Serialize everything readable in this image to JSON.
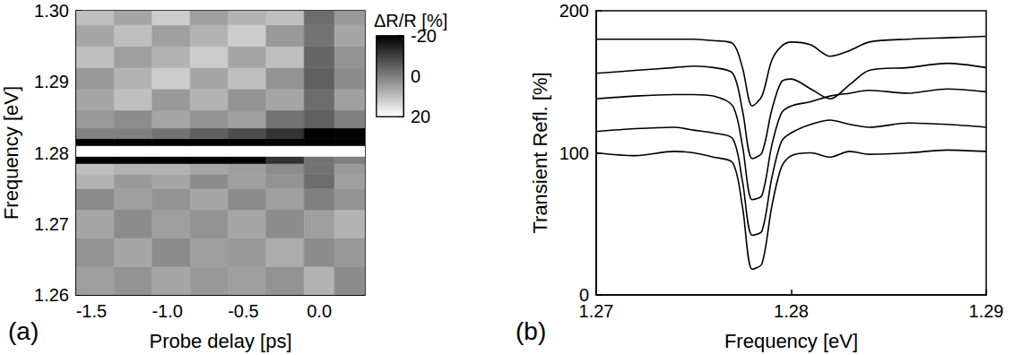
{
  "chart_data": [
    {
      "type": "heatmap",
      "panel_label": "(a)",
      "x_label": "Probe delay [ps]",
      "y_label": "Frequency [eV]",
      "xlim": [
        -1.6,
        0.3
      ],
      "xticks": [
        -1.5,
        {
          "value": -1,
          "label": "-1.0"
        },
        -0.5,
        {
          "value": 0,
          "label": "0.0"
        }
      ],
      "ylim": [
        1.26,
        1.3
      ],
      "yticks": [
        1.26,
        1.27,
        1.28,
        1.29,
        {
          "value": 1.3,
          "label": "1.30"
        }
      ],
      "grid": false,
      "x_edges": [
        -1.6,
        -1.35,
        -1.1,
        -0.85,
        -0.6,
        -0.35,
        -0.1,
        0.1,
        0.3
      ],
      "y_edges": [
        1.26,
        1.264,
        1.268,
        1.272,
        1.275,
        1.277,
        1.2785,
        1.2795,
        1.281,
        1.282,
        1.2835,
        1.286,
        1.289,
        1.292,
        1.295,
        1.298,
        1.3
      ],
      "values": [
        [
          5,
          3,
          6,
          4,
          5,
          3,
          8,
          2
        ],
        [
          3,
          6,
          2,
          5,
          4,
          7,
          2,
          4
        ],
        [
          6,
          2,
          5,
          3,
          6,
          2,
          5,
          8
        ],
        [
          2,
          5,
          3,
          6,
          2,
          5,
          0,
          3
        ],
        [
          8,
          4,
          6,
          2,
          5,
          3,
          -3,
          5
        ],
        [
          10,
          8,
          8,
          6,
          5,
          2,
          -2,
          4
        ],
        [
          -20,
          -20,
          -20,
          -20,
          -20,
          -12,
          -2,
          0
        ],
        [
          20,
          20,
          20,
          20,
          20,
          20,
          20,
          20
        ],
        [
          -20,
          -20,
          -20,
          -20,
          -20,
          -20,
          -20,
          -20
        ],
        [
          0,
          0,
          -2,
          -5,
          -8,
          -12,
          -20,
          -20
        ],
        [
          4,
          2,
          6,
          3,
          5,
          -2,
          -5,
          0
        ],
        [
          6,
          10,
          4,
          8,
          3,
          6,
          -3,
          5
        ],
        [
          4,
          8,
          12,
          6,
          10,
          3,
          -5,
          2
        ],
        [
          10,
          5,
          8,
          12,
          6,
          10,
          -4,
          3
        ],
        [
          6,
          10,
          5,
          8,
          12,
          4,
          -2,
          6
        ],
        [
          10,
          6,
          12,
          5,
          8,
          10,
          -3,
          4
        ]
      ],
      "colorbar": {
        "title": "ΔR/R [%]",
        "range": [
          -20,
          20
        ],
        "ticks": [
          -20,
          0,
          20
        ],
        "colors": [
          "#000000",
          "#ffffff"
        ]
      }
    },
    {
      "type": "line",
      "panel_label": "(b)",
      "x_label": "Frequency [eV]",
      "y_label": "Transient Refl. [%]",
      "xlim": [
        1.27,
        1.29
      ],
      "xticks": [
        1.27,
        1.28,
        1.29
      ],
      "ylim": [
        0,
        200
      ],
      "yticks": [
        0,
        100,
        200
      ],
      "grid": false,
      "marker": "none",
      "line_style": "solid",
      "x": [
        1.27,
        1.272,
        1.274,
        1.275,
        1.276,
        1.277,
        1.2775,
        1.278,
        1.2785,
        1.279,
        1.2795,
        1.28,
        1.281,
        1.282,
        1.283,
        1.284,
        1.286,
        1.288,
        1.29
      ],
      "series": [
        {
          "color": "#000000",
          "values": [
            100,
            98,
            101,
            100,
            97,
            93,
            62,
            18,
            22,
            62,
            90,
            98,
            100,
            97,
            101,
            99,
            100,
            102,
            101
          ]
        },
        {
          "color": "#000000",
          "values": [
            115,
            117,
            118,
            116,
            114,
            110,
            80,
            42,
            45,
            82,
            108,
            114,
            120,
            123,
            120,
            118,
            121,
            120,
            118
          ]
        },
        {
          "color": "#000000",
          "values": [
            138,
            140,
            141,
            141,
            140,
            133,
            105,
            67,
            70,
            105,
            128,
            133,
            136,
            140,
            142,
            144,
            142,
            145,
            143
          ]
        },
        {
          "color": "#000000",
          "values": [
            156,
            158,
            160,
            161,
            160,
            156,
            130,
            96,
            100,
            130,
            150,
            152,
            145,
            138,
            148,
            158,
            160,
            163,
            160
          ]
        },
        {
          "color": "#000000",
          "values": [
            180,
            180,
            180,
            180,
            179,
            177,
            160,
            133,
            140,
            165,
            175,
            178,
            176,
            168,
            172,
            178,
            180,
            181,
            182
          ]
        }
      ]
    }
  ]
}
